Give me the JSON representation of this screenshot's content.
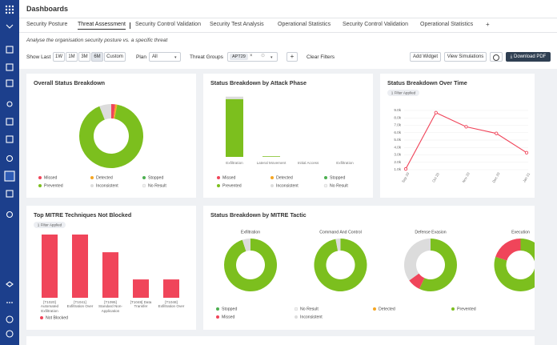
{
  "header": {
    "title": "Dashboards"
  },
  "tabs": [
    "Security Posture",
    "Threat Assessment",
    "Security Control Validation",
    "Security Test Analysis",
    "Operational Statistics",
    "Security Control Validation",
    "Operational Statistics",
    "+"
  ],
  "subtitle": "Analyse the organisation security posture vs. a specific threat",
  "filters": {
    "show_last": "Show Last",
    "ranges": [
      "1W",
      "1M",
      "3M",
      "6M",
      "Custom"
    ],
    "plan": "Plan",
    "plan_value": "All",
    "threat_groups": "Threat Groups",
    "threat_group": "APT29",
    "add": "+",
    "clear": "Clear Filters"
  },
  "actions": {
    "add_widget": "Add Widget",
    "view_simulations": "View Simulations",
    "download_pdf": "Download PDF"
  },
  "widgets": [
    {
      "type": "pie",
      "title": "Overall Status Breakdown",
      "series": [
        {
          "name": "Missed",
          "color": "#f0455a",
          "value": 2
        },
        {
          "name": "Detected",
          "color": "#f5a623",
          "value": 1
        },
        {
          "name": "Stopped",
          "color": "#4caf50",
          "value": 0
        },
        {
          "name": "Prevented",
          "color": "#7cbf1e",
          "value": 91
        },
        {
          "name": "Inconsistent",
          "color": "#dcdcdc",
          "value": 6
        },
        {
          "name": "No Result",
          "color": "#f1f1f1",
          "value": 0
        }
      ]
    },
    {
      "type": "stacked_bar",
      "title": "Status Breakdown by Attack Phase",
      "categories": [
        "Exfiltration",
        "Lateral Movement",
        "Initial Access",
        "Exfiltration"
      ],
      "ylim": [
        0,
        100
      ],
      "series": [
        {
          "name": "Missed",
          "color": "#f0455a",
          "values": [
            0,
            0,
            0,
            0
          ]
        },
        {
          "name": "Detected",
          "color": "#f5a623",
          "values": [
            0,
            0,
            0,
            0
          ]
        },
        {
          "name": "Stopped",
          "color": "#4caf50",
          "values": [
            0,
            0,
            0,
            0
          ]
        },
        {
          "name": "Prevented",
          "color": "#7cbf1e",
          "values": [
            95,
            1,
            0,
            0
          ]
        },
        {
          "name": "Inconsistent",
          "color": "#dcdcdc",
          "values": [
            4,
            0,
            0,
            0
          ]
        },
        {
          "name": "No Result",
          "color": "#f1f1f1",
          "values": [
            0,
            0,
            0,
            0
          ]
        }
      ]
    },
    {
      "type": "line",
      "title": "Status Breakdown Over Time",
      "filter": "1 Filter Applied",
      "categories": [
        "Sep 20",
        "Oct 20",
        "Nov 20",
        "Dec 20",
        "Jan 21"
      ],
      "color": "#f0455a",
      "values": [
        1100,
        8700,
        6800,
        5900,
        3300
      ],
      "ylim": [
        1000,
        9000
      ],
      "yticks": [
        {
          "value": 1000,
          "label": "1.0k"
        },
        {
          "value": 2000,
          "label": "2.0k"
        },
        {
          "value": 3000,
          "label": "3.0k"
        },
        {
          "value": 4000,
          "label": "4.0k"
        },
        {
          "value": 5000,
          "label": "5.0k"
        },
        {
          "value": 6000,
          "label": "6.0k"
        },
        {
          "value": 7000,
          "label": "7.0k"
        },
        {
          "value": 8000,
          "label": "8.0k"
        },
        {
          "value": 9000,
          "label": "9.0k"
        }
      ],
      "grid": true
    },
    {
      "type": "bar",
      "title": "Top MITRE Techniques Not Blocked",
      "filter": "1 Filter Applied",
      "categories": [
        "[T1020] Automated Exfiltration",
        "[T1041] Exfiltration Over",
        "[T1095] Standard Non-Application",
        "[T1048] Data Transfer",
        "[T1048] Exfiltration Over"
      ],
      "ylim": [
        0,
        100
      ],
      "series": [
        {
          "name": "Not Blocked",
          "color": "#f0455a",
          "values": [
            100,
            100,
            72,
            29,
            29
          ]
        }
      ]
    },
    {
      "type": "donuts",
      "title": "Status Breakdown by MITRE Tactic",
      "categories": [
        "Exfiltration",
        "Command And Control",
        "Defense Evasion",
        "Execution"
      ],
      "series": [
        {
          "name": "Stopped",
          "color": "#4caf50",
          "values": [
            0,
            0,
            0,
            0
          ]
        },
        {
          "name": "No Result",
          "color": "#f1f1f1",
          "values": [
            0,
            0,
            0,
            0
          ]
        },
        {
          "name": "Detected",
          "color": "#f5a623",
          "values": [
            0,
            0,
            0,
            0
          ]
        },
        {
          "name": "Prevented",
          "color": "#7cbf1e",
          "values": [
            95,
            97,
            57,
            80
          ]
        },
        {
          "name": "Missed",
          "color": "#f0455a",
          "values": [
            0,
            0,
            8,
            20
          ]
        },
        {
          "name": "Inconsistent",
          "color": "#dcdcdc",
          "values": [
            5,
            3,
            35,
            0
          ]
        }
      ]
    }
  ]
}
